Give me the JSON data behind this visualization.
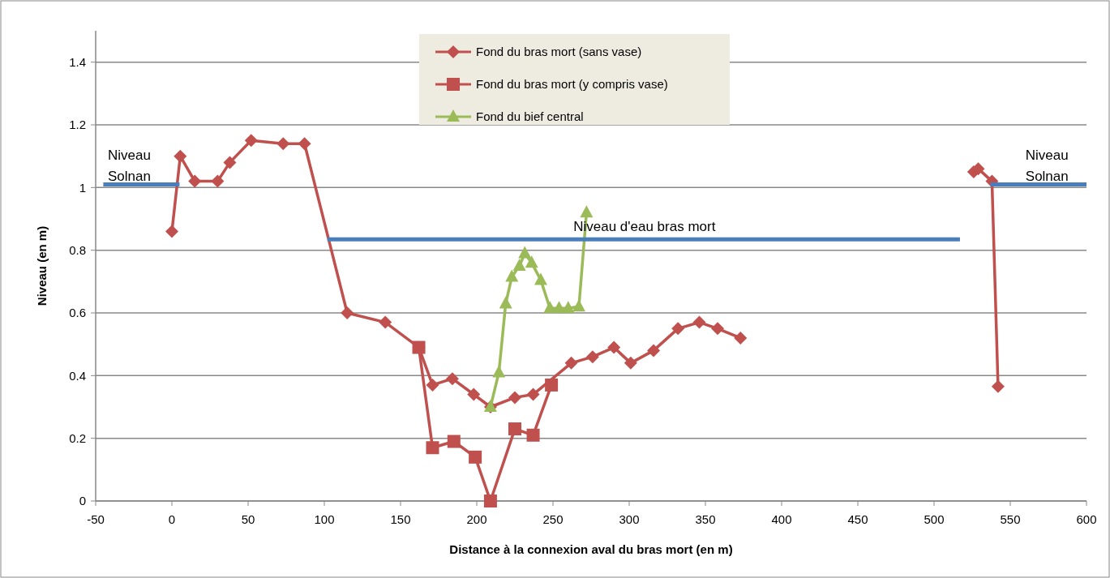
{
  "chart_data": {
    "type": "line",
    "xlabel": "Distance à la connexion aval du bras mort (en m)",
    "ylabel": "Niveau (en m)",
    "xlim": [
      -50,
      600
    ],
    "xticks": [
      -50,
      0,
      50,
      100,
      150,
      200,
      250,
      300,
      350,
      400,
      450,
      500,
      550,
      600
    ],
    "ylim": [
      0,
      1.5
    ],
    "yticks": [
      0,
      0.2,
      0.4,
      0.6,
      0.8,
      1,
      1.2,
      1.4
    ],
    "grid": "y",
    "legend": "top",
    "line_style": "solid",
    "series": [
      {
        "name": "Fond du bras mort (sans vase)",
        "color": "#c0504d",
        "marker": "diamond",
        "x": [
          0,
          5.5,
          15,
          30,
          38,
          52,
          73,
          87,
          115,
          140,
          162,
          171,
          184,
          198,
          209,
          225,
          237,
          262,
          276,
          290,
          301,
          316,
          332,
          346,
          358,
          373,
          450,
          526,
          529,
          538,
          542
        ],
        "values": [
          0.86,
          1.1,
          1.02,
          1.02,
          1.08,
          1.15,
          1.14,
          1.14,
          0.6,
          0.57,
          0.49,
          0.37,
          0.39,
          0.34,
          0.3,
          0.33,
          0.34,
          0.44,
          0.46,
          0.49,
          0.44,
          0.48,
          0.55,
          0.57,
          0.55,
          0.52,
          null,
          1.05,
          1.06,
          1.02,
          0.365
        ]
      },
      {
        "name": "Fond du bras mort (y compris vase)",
        "color": "#c0504d",
        "marker": "square",
        "x": [
          162,
          171,
          185,
          199,
          209,
          225,
          237,
          249
        ],
        "values": [
          0.49,
          0.17,
          0.19,
          0.14,
          0,
          0.23,
          0.21,
          0.37
        ]
      },
      {
        "name": "Fond du bief central",
        "color": "#9bbb59",
        "marker": "triangle",
        "x": [
          209,
          214.5,
          219,
          223,
          228,
          231.5,
          236,
          242,
          248,
          254,
          260,
          267,
          272
        ],
        "values": [
          0.3,
          0.41,
          0.63,
          0.715,
          0.75,
          0.79,
          0.76,
          0.705,
          0.615,
          0.615,
          0.615,
          0.62,
          0.92
        ]
      },
      {
        "color": "#4a7ebb",
        "marker": "none",
        "x": [
          -45,
          5,
          300,
          537,
          600
        ],
        "values": [
          1.01,
          1.01,
          null,
          1.01,
          1.01
        ]
      },
      {
        "color": "#4a7ebb",
        "marker": "none",
        "x": [
          102,
          517
        ],
        "values": [
          0.835,
          0.835
        ]
      }
    ],
    "annotations": [
      {
        "text": "Niveau Solnan",
        "x": -42,
        "y": 1.01
      },
      {
        "text": "Niveau d'eau bras mort",
        "x": 310,
        "y": 0.835
      },
      {
        "text": "Niveau Solnan",
        "x": 560,
        "y": 1.01
      }
    ]
  }
}
